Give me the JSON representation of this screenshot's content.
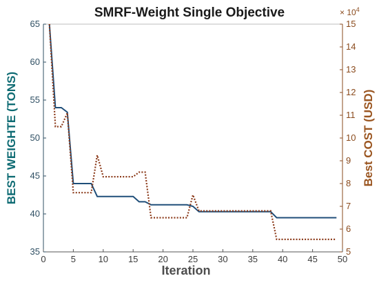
{
  "chart_data": {
    "type": "line",
    "title": "SMRF-Weight Single Objective",
    "xlabel": "Iteration",
    "ylabel_left": "BEST WEIGHTE (TONS)",
    "ylabel_right": "Best COST (USD)",
    "right_axis_multiplier": "× 10",
    "right_axis_exponent": "4",
    "xlim": [
      0,
      50
    ],
    "ylim_left": [
      35,
      65
    ],
    "ylim_right": [
      5,
      15
    ],
    "x_ticks": [
      "0",
      "5",
      "10",
      "15",
      "20",
      "25",
      "30",
      "35",
      "40",
      "45",
      "50"
    ],
    "y_left_ticks": [
      "35",
      "40",
      "45",
      "50",
      "55",
      "60",
      "65"
    ],
    "y_right_ticks": [
      "5",
      "6",
      "7",
      "8",
      "9",
      "10",
      "11",
      "12",
      "13",
      "14",
      "15"
    ],
    "grid": false,
    "colors": {
      "weight": "#1f4e79",
      "cost": "#8b3a1a",
      "left_axis": "#2f4f63",
      "right_axis": "#8a4a1c"
    },
    "series": [
      {
        "axis": "left",
        "style": "solid",
        "points": [
          [
            1,
            65
          ],
          [
            2,
            54
          ],
          [
            3,
            54
          ],
          [
            4,
            53.4
          ],
          [
            5,
            44
          ],
          [
            6,
            44
          ],
          [
            7,
            44
          ],
          [
            8,
            44
          ],
          [
            9,
            42.3
          ],
          [
            10,
            42.3
          ],
          [
            11,
            42.3
          ],
          [
            12,
            42.3
          ],
          [
            13,
            42.3
          ],
          [
            14,
            42.3
          ],
          [
            15,
            42.3
          ],
          [
            16,
            41.6
          ],
          [
            17,
            41.6
          ],
          [
            18,
            41.2
          ],
          [
            19,
            41.2
          ],
          [
            20,
            41.2
          ],
          [
            21,
            41.2
          ],
          [
            22,
            41.2
          ],
          [
            23,
            41.2
          ],
          [
            24,
            41.2
          ],
          [
            25,
            41
          ],
          [
            26,
            40.3
          ],
          [
            27,
            40.3
          ],
          [
            28,
            40.3
          ],
          [
            29,
            40.3
          ],
          [
            30,
            40.3
          ],
          [
            31,
            40.3
          ],
          [
            32,
            40.3
          ],
          [
            33,
            40.3
          ],
          [
            34,
            40.3
          ],
          [
            35,
            40.3
          ],
          [
            36,
            40.3
          ],
          [
            37,
            40.3
          ],
          [
            38,
            40.3
          ],
          [
            39,
            39.5
          ],
          [
            40,
            39.5
          ],
          [
            41,
            39.5
          ],
          [
            42,
            39.5
          ],
          [
            43,
            39.5
          ],
          [
            44,
            39.5
          ],
          [
            45,
            39.5
          ],
          [
            46,
            39.5
          ],
          [
            47,
            39.5
          ],
          [
            48,
            39.5
          ],
          [
            49,
            39.5
          ]
        ]
      },
      {
        "axis": "right",
        "style": "dotted",
        "points": [
          [
            1,
            15
          ],
          [
            2,
            10.5
          ],
          [
            3,
            10.5
          ],
          [
            4,
            11.1
          ],
          [
            5,
            7.6
          ],
          [
            6,
            7.6
          ],
          [
            7,
            7.6
          ],
          [
            8,
            7.6
          ],
          [
            9,
            9.25
          ],
          [
            10,
            8.3
          ],
          [
            11,
            8.3
          ],
          [
            12,
            8.3
          ],
          [
            13,
            8.3
          ],
          [
            14,
            8.3
          ],
          [
            15,
            8.3
          ],
          [
            16,
            8.5
          ],
          [
            17,
            8.5
          ],
          [
            18,
            6.5
          ],
          [
            19,
            6.5
          ],
          [
            20,
            6.5
          ],
          [
            21,
            6.5
          ],
          [
            22,
            6.5
          ],
          [
            23,
            6.5
          ],
          [
            24,
            6.5
          ],
          [
            25,
            7.5
          ],
          [
            26,
            6.8
          ],
          [
            27,
            6.8
          ],
          [
            28,
            6.8
          ],
          [
            29,
            6.8
          ],
          [
            30,
            6.8
          ],
          [
            31,
            6.8
          ],
          [
            32,
            6.8
          ],
          [
            33,
            6.8
          ],
          [
            34,
            6.8
          ],
          [
            35,
            6.8
          ],
          [
            36,
            6.8
          ],
          [
            37,
            6.8
          ],
          [
            38,
            6.8
          ],
          [
            39,
            5.55
          ],
          [
            40,
            5.55
          ],
          [
            41,
            5.55
          ],
          [
            42,
            5.55
          ],
          [
            43,
            5.55
          ],
          [
            44,
            5.55
          ],
          [
            45,
            5.55
          ],
          [
            46,
            5.55
          ],
          [
            47,
            5.55
          ],
          [
            48,
            5.55
          ],
          [
            49,
            5.55
          ]
        ]
      }
    ]
  }
}
